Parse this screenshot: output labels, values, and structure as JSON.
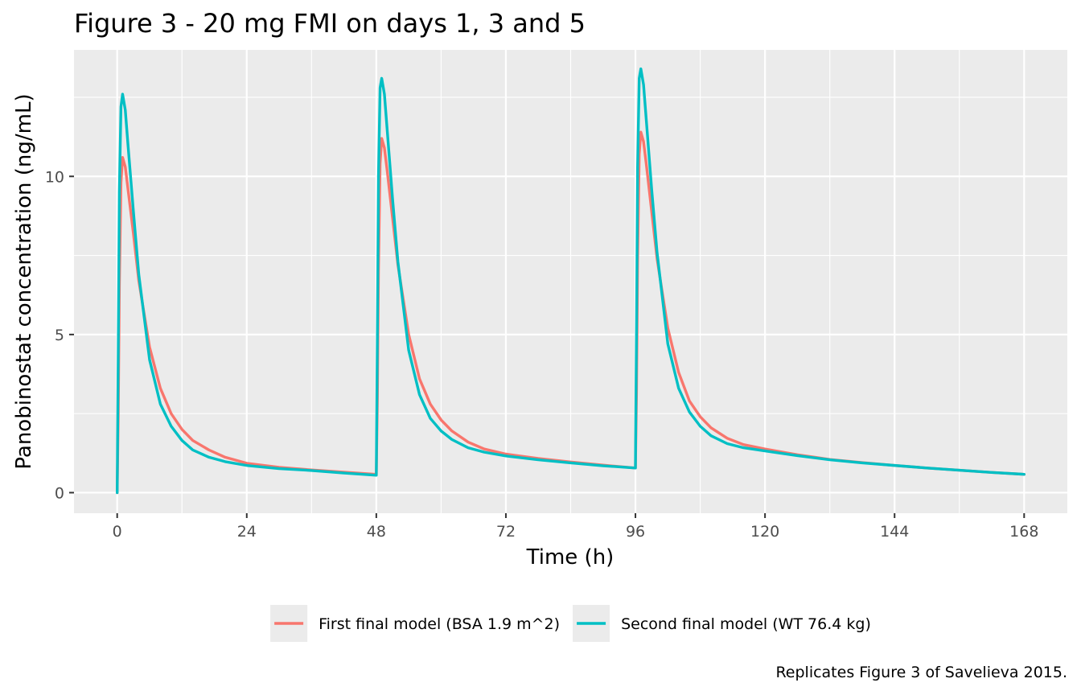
{
  "chart_data": {
    "type": "line",
    "title": "Figure 3 - 20 mg FMI on days 1, 3 and 5",
    "xlabel": "Time (h)",
    "ylabel": "Panobinostat concentration (ng/mL)",
    "caption": "Replicates Figure 3 of Savelieva 2015.",
    "xlim": [
      -8,
      176
    ],
    "ylim": [
      -0.65,
      14.0
    ],
    "x_ticks": [
      0,
      24,
      48,
      72,
      96,
      120,
      144,
      168
    ],
    "x_tick_labels": [
      "0",
      "24",
      "48",
      "72",
      "96",
      "120",
      "144",
      "168"
    ],
    "y_ticks": [
      0,
      5,
      10
    ],
    "y_tick_labels": [
      "0",
      "5",
      "10"
    ],
    "grid": true,
    "legend": "bottom",
    "colors": {
      "panel": "#ebebeb",
      "legend_key": "#ebebeb"
    },
    "series": [
      {
        "name": "First final model (BSA 1.9 m^2)",
        "color": "#f8766d",
        "points": [
          [
            0,
            0
          ],
          [
            0.2,
            2.5
          ],
          [
            0.4,
            6.5
          ],
          [
            0.7,
            9.8
          ],
          [
            1,
            10.6
          ],
          [
            1.5,
            10.3
          ],
          [
            2,
            9.6
          ],
          [
            3,
            8.2
          ],
          [
            4,
            6.7
          ],
          [
            6,
            4.6
          ],
          [
            8,
            3.3
          ],
          [
            10,
            2.5
          ],
          [
            12,
            2.0
          ],
          [
            14,
            1.65
          ],
          [
            17,
            1.35
          ],
          [
            20,
            1.12
          ],
          [
            24,
            0.93
          ],
          [
            30,
            0.8
          ],
          [
            36,
            0.72
          ],
          [
            42,
            0.65
          ],
          [
            48,
            0.58
          ],
          [
            48.2,
            3.0
          ],
          [
            48.4,
            7.0
          ],
          [
            48.7,
            10.4
          ],
          [
            49,
            11.2
          ],
          [
            49.5,
            10.9
          ],
          [
            50,
            10.2
          ],
          [
            51,
            8.7
          ],
          [
            52,
            7.2
          ],
          [
            54,
            5.0
          ],
          [
            56,
            3.6
          ],
          [
            58,
            2.8
          ],
          [
            60,
            2.3
          ],
          [
            62,
            1.95
          ],
          [
            65,
            1.6
          ],
          [
            68,
            1.38
          ],
          [
            72,
            1.22
          ],
          [
            78,
            1.08
          ],
          [
            84,
            0.97
          ],
          [
            90,
            0.87
          ],
          [
            96,
            0.78
          ],
          [
            96.2,
            3.2
          ],
          [
            96.4,
            7.3
          ],
          [
            96.7,
            10.7
          ],
          [
            97,
            11.4
          ],
          [
            97.5,
            11.1
          ],
          [
            98,
            10.4
          ],
          [
            99,
            8.9
          ],
          [
            100,
            7.4
          ],
          [
            102,
            5.2
          ],
          [
            104,
            3.8
          ],
          [
            106,
            2.9
          ],
          [
            108,
            2.4
          ],
          [
            110,
            2.05
          ],
          [
            113,
            1.72
          ],
          [
            116,
            1.52
          ],
          [
            120,
            1.38
          ],
          [
            126,
            1.2
          ],
          [
            132,
            1.05
          ],
          [
            138,
            0.95
          ],
          [
            144,
            0.86
          ],
          [
            150,
            0.78
          ],
          [
            156,
            0.71
          ],
          [
            162,
            0.64
          ],
          [
            168,
            0.58
          ]
        ]
      },
      {
        "name": "Second final model (WT 76.4 kg)",
        "color": "#00bfc4",
        "points": [
          [
            0,
            0
          ],
          [
            0.2,
            4.5
          ],
          [
            0.4,
            9.5
          ],
          [
            0.7,
            12.2
          ],
          [
            1,
            12.6
          ],
          [
            1.5,
            12.1
          ],
          [
            2,
            11.0
          ],
          [
            3,
            8.9
          ],
          [
            4,
            6.9
          ],
          [
            6,
            4.2
          ],
          [
            8,
            2.8
          ],
          [
            10,
            2.1
          ],
          [
            12,
            1.65
          ],
          [
            14,
            1.35
          ],
          [
            17,
            1.12
          ],
          [
            20,
            0.98
          ],
          [
            24,
            0.86
          ],
          [
            30,
            0.76
          ],
          [
            36,
            0.7
          ],
          [
            42,
            0.62
          ],
          [
            48,
            0.55
          ],
          [
            48.2,
            5.0
          ],
          [
            48.4,
            10.0
          ],
          [
            48.7,
            12.8
          ],
          [
            49,
            13.1
          ],
          [
            49.5,
            12.6
          ],
          [
            50,
            11.5
          ],
          [
            51,
            9.3
          ],
          [
            52,
            7.3
          ],
          [
            54,
            4.5
          ],
          [
            56,
            3.1
          ],
          [
            58,
            2.35
          ],
          [
            60,
            1.95
          ],
          [
            62,
            1.68
          ],
          [
            65,
            1.42
          ],
          [
            68,
            1.28
          ],
          [
            72,
            1.16
          ],
          [
            78,
            1.04
          ],
          [
            84,
            0.94
          ],
          [
            90,
            0.85
          ],
          [
            96,
            0.78
          ],
          [
            96.2,
            5.2
          ],
          [
            96.4,
            10.3
          ],
          [
            96.7,
            13.1
          ],
          [
            97,
            13.4
          ],
          [
            97.5,
            12.9
          ],
          [
            98,
            11.8
          ],
          [
            99,
            9.6
          ],
          [
            100,
            7.6
          ],
          [
            102,
            4.7
          ],
          [
            104,
            3.3
          ],
          [
            106,
            2.55
          ],
          [
            108,
            2.1
          ],
          [
            110,
            1.8
          ],
          [
            113,
            1.55
          ],
          [
            116,
            1.42
          ],
          [
            120,
            1.32
          ],
          [
            126,
            1.17
          ],
          [
            132,
            1.04
          ],
          [
            138,
            0.94
          ],
          [
            144,
            0.86
          ],
          [
            150,
            0.78
          ],
          [
            156,
            0.71
          ],
          [
            162,
            0.64
          ],
          [
            168,
            0.58
          ]
        ]
      }
    ]
  }
}
